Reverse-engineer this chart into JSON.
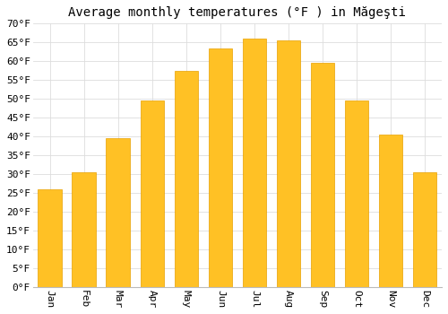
{
  "title": "Average monthly temperatures (°F ) in Măgeşti",
  "months": [
    "Jan",
    "Feb",
    "Mar",
    "Apr",
    "May",
    "Jun",
    "Jul",
    "Aug",
    "Sep",
    "Oct",
    "Nov",
    "Dec"
  ],
  "values": [
    26,
    30.5,
    39.5,
    49.5,
    57.5,
    63.5,
    66,
    65.5,
    59.5,
    49.5,
    40.5,
    30.5
  ],
  "bar_color": "#FFC125",
  "bar_edge_color": "#E8A000",
  "background_color": "#FFFFFF",
  "grid_color": "#DDDDDD",
  "ylim": [
    0,
    70
  ],
  "yticks": [
    0,
    5,
    10,
    15,
    20,
    25,
    30,
    35,
    40,
    45,
    50,
    55,
    60,
    65,
    70
  ],
  "ylabel_suffix": "°F",
  "title_fontsize": 10,
  "tick_fontsize": 8,
  "font_family": "monospace",
  "label_rotation": 270
}
